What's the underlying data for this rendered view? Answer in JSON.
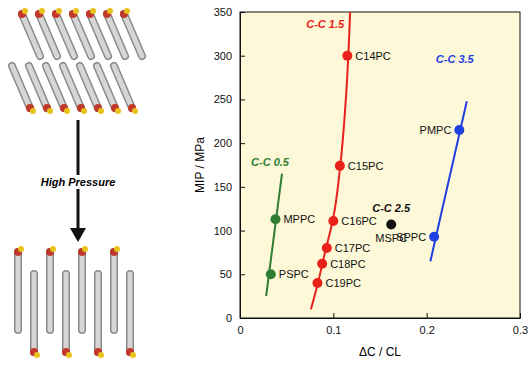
{
  "illustration": {
    "arrow_label": "High Pressure"
  },
  "chart_data": {
    "type": "scatter",
    "xlabel": "ΔC / CL",
    "ylabel": "MIP / MPa",
    "xlim": [
      0,
      0.3
    ],
    "ylim": [
      0,
      350
    ],
    "xticks": [
      0,
      0.1,
      0.2,
      0.3
    ],
    "yticks": [
      0,
      50,
      100,
      150,
      200,
      250,
      300,
      350
    ],
    "grid": false,
    "marker": "circle",
    "series": [
      {
        "name": "C-C 0.5",
        "color": "#2e7d32",
        "x": [
          0.033,
          0.038
        ],
        "values": [
          50,
          113
        ],
        "labels": [
          "PSPC",
          "MPPC"
        ],
        "fit_x": [
          0.028,
          0.045
        ],
        "fit_values": [
          25,
          165
        ]
      },
      {
        "name": "C-C 1.5",
        "color": "#e8221b",
        "x": [
          0.115,
          0.107,
          0.1,
          0.093,
          0.088,
          0.083
        ],
        "values": [
          300,
          174,
          111,
          80,
          62,
          40
        ],
        "labels": [
          "C14PC",
          "C15PC",
          "C16PC",
          "C17PC",
          "C18PC",
          "C19PC"
        ],
        "fit_x": [
          0.076,
          0.083,
          0.09,
          0.1,
          0.108,
          0.114,
          0.118
        ],
        "fit_values": [
          10,
          38,
          70,
          115,
          180,
          260,
          350
        ]
      },
      {
        "name": "C-C 2.5",
        "color": "#111111",
        "x": [
          0.162
        ],
        "values": [
          107
        ],
        "labels": [
          "MSPC"
        ]
      },
      {
        "name": "C-C 3.5",
        "color": "#1f3fe0",
        "x": [
          0.208,
          0.235
        ],
        "values": [
          93,
          215
        ],
        "labels": [
          "SPPC",
          "PMPC"
        ],
        "fit_x": [
          0.204,
          0.243
        ],
        "fit_values": [
          65,
          248
        ]
      }
    ]
  }
}
